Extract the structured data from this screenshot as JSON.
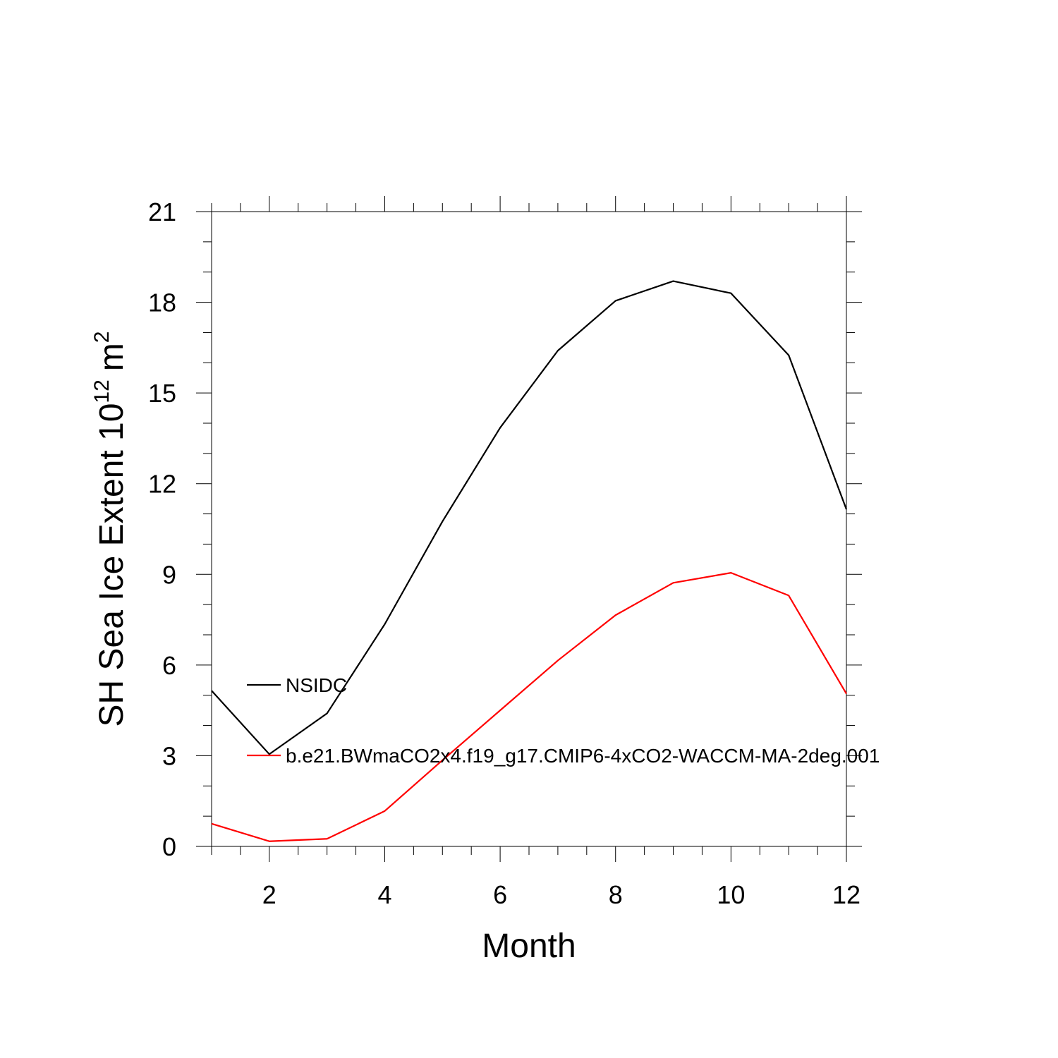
{
  "chart_data": {
    "type": "line",
    "title": "",
    "xlabel": "Month",
    "ylabel": {
      "text": "SH Sea Ice Extent 10",
      "superscript_1": "12",
      "unit": "m",
      "superscript_2": "2"
    },
    "xlim": [
      1,
      12
    ],
    "ylim": [
      0,
      21
    ],
    "x_ticks": [
      2,
      4,
      6,
      8,
      10,
      12
    ],
    "y_ticks": [
      0,
      3,
      6,
      9,
      12,
      15,
      18,
      21
    ],
    "grid": false,
    "legend_placement": "inside-left",
    "x": [
      1,
      2,
      3,
      4,
      5,
      6,
      7,
      8,
      9,
      10,
      11,
      12
    ],
    "series": [
      {
        "name": "NSIDC",
        "color": "#000000",
        "values": [
          5.15,
          3.05,
          4.4,
          7.35,
          10.75,
          13.85,
          16.4,
          18.05,
          18.7,
          18.3,
          16.25,
          11.15
        ]
      },
      {
        "name": "b.e21.BWmaCO2x4.f19_g17.CMIP6-4xCO2-WACCM-MA-2deg.001",
        "color": "#ff0000",
        "values": [
          0.75,
          0.17,
          0.25,
          1.17,
          2.85,
          4.5,
          6.15,
          7.65,
          8.72,
          9.05,
          8.3,
          5.05
        ]
      }
    ]
  }
}
